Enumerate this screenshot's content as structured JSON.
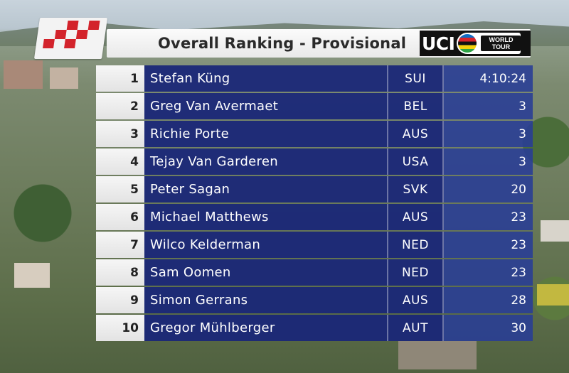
{
  "header": {
    "title": "Overall Ranking - Provisional",
    "sponsor_logo_text": "UCI",
    "world_tour_badge": "WORLD TOUR"
  },
  "colors": {
    "panel_blue": "#1a2678",
    "time_column_blue": "#283c96",
    "logo_red": "#d3232b",
    "rank_cell_white": "#f0f0f0"
  },
  "ranking": [
    {
      "rank": "1",
      "name": "Stefan Küng",
      "nation": "SUI",
      "time": "4:10:24"
    },
    {
      "rank": "2",
      "name": "Greg Van Avermaet",
      "nation": "BEL",
      "time": "3"
    },
    {
      "rank": "3",
      "name": "Richie Porte",
      "nation": "AUS",
      "time": "3"
    },
    {
      "rank": "4",
      "name": "Tejay Van Garderen",
      "nation": "USA",
      "time": "3"
    },
    {
      "rank": "5",
      "name": "Peter Sagan",
      "nation": "SVK",
      "time": "20"
    },
    {
      "rank": "6",
      "name": "Michael Matthews",
      "nation": "AUS",
      "time": "23"
    },
    {
      "rank": "7",
      "name": "Wilco Kelderman",
      "nation": "NED",
      "time": "23"
    },
    {
      "rank": "8",
      "name": "Sam Oomen",
      "nation": "NED",
      "time": "23"
    },
    {
      "rank": "9",
      "name": "Simon Gerrans",
      "nation": "AUS",
      "time": "28"
    },
    {
      "rank": "10",
      "name": "Gregor Mühlberger",
      "nation": "AUT",
      "time": "30"
    }
  ]
}
